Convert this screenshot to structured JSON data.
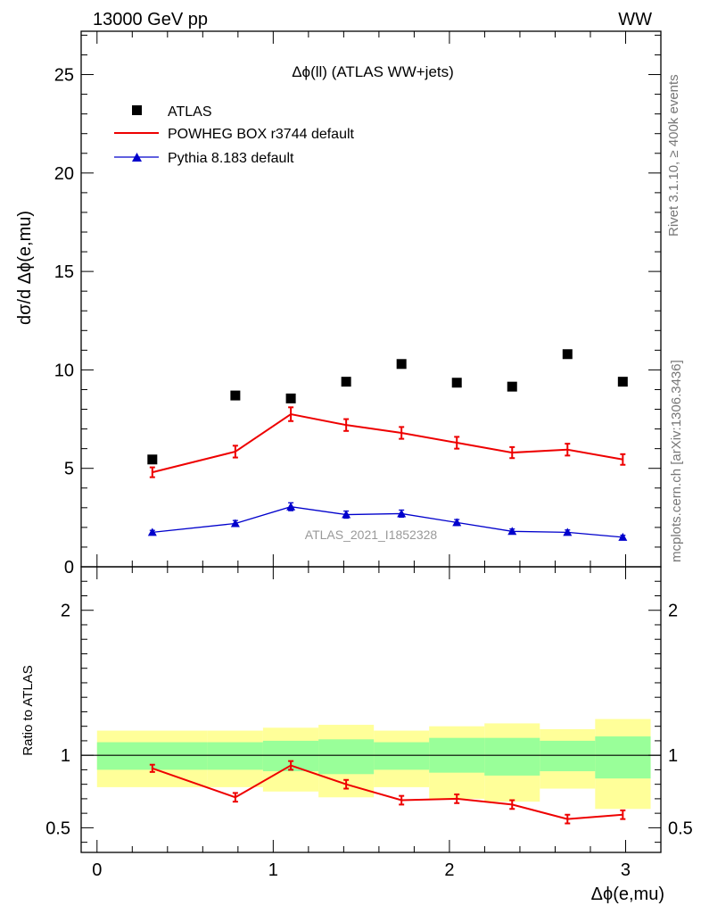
{
  "header": {
    "energy_label": "13000 GeV pp",
    "process_label": "WW",
    "rivet_label": "Rivet 3.1.10, ≥ 400k events",
    "source_label": "mcplots.cern.ch [arXiv:1306.3436]"
  },
  "chart_data": [
    {
      "type": "scatter",
      "title": "Δϕ(ll) (ATLAS WW+jets)",
      "analysis_label": "ATLAS_2021_I1852328",
      "ylabel": "dσ/d Δϕ(e,mu)",
      "ylim": [
        0,
        27.2
      ],
      "yticks": [
        0,
        5,
        10,
        15,
        20,
        25
      ],
      "xlim": [
        -0.09,
        3.2
      ],
      "x": [
        0.314,
        0.785,
        1.1,
        1.414,
        1.728,
        2.042,
        2.356,
        2.67,
        2.984
      ],
      "bin_edges": [
        0.0,
        0.628,
        0.942,
        1.257,
        1.571,
        1.885,
        2.199,
        2.513,
        2.827,
        3.142
      ],
      "legend": [
        "ATLAS",
        "POWHEG BOX r3744 default",
        "Pythia 8.183 default"
      ],
      "series": [
        {
          "name": "ATLAS",
          "marker": "square",
          "color": "#000000",
          "values": [
            5.45,
            8.7,
            8.55,
            9.4,
            10.3,
            9.35,
            9.15,
            10.8,
            9.4
          ]
        },
        {
          "name": "POWHEG BOX r3744 default",
          "marker": "line",
          "color": "#ee0000",
          "values": [
            4.8,
            5.85,
            7.75,
            7.2,
            6.8,
            6.3,
            5.8,
            5.95,
            5.45
          ],
          "errors": [
            0.25,
            0.3,
            0.35,
            0.3,
            0.3,
            0.3,
            0.28,
            0.3,
            0.27
          ]
        },
        {
          "name": "Pythia 8.183 default",
          "marker": "triangle",
          "color": "#0000cc",
          "values": [
            1.75,
            2.2,
            3.05,
            2.65,
            2.7,
            2.25,
            1.8,
            1.75,
            1.5
          ],
          "errors": [
            0.1,
            0.15,
            0.2,
            0.18,
            0.18,
            0.15,
            0.12,
            0.12,
            0.1
          ]
        }
      ]
    },
    {
      "type": "scatter",
      "ylabel": "Ratio to ATLAS",
      "xlabel": "Δϕ(e,mu)",
      "ylim": [
        0.33,
        2.3
      ],
      "yticks": [
        0.5,
        1,
        2
      ],
      "ytick_labels": [
        "0.5",
        "1",
        "2"
      ],
      "xticks": [
        0,
        1,
        2,
        3
      ],
      "xtick_labels": [
        "0",
        "1",
        "2",
        "3"
      ],
      "xlim": [
        -0.09,
        3.2
      ],
      "reference_line": 1,
      "band_inner": [
        {
          "lo": 0.9,
          "hi": 1.09
        },
        {
          "lo": 0.9,
          "hi": 1.09
        },
        {
          "lo": 0.89,
          "hi": 1.1
        },
        {
          "lo": 0.87,
          "hi": 1.11
        },
        {
          "lo": 0.9,
          "hi": 1.09
        },
        {
          "lo": 0.88,
          "hi": 1.12
        },
        {
          "lo": 0.86,
          "hi": 1.12
        },
        {
          "lo": 0.89,
          "hi": 1.1
        },
        {
          "lo": 0.84,
          "hi": 1.13
        }
      ],
      "band_outer": [
        {
          "lo": 0.78,
          "hi": 1.17
        },
        {
          "lo": 0.78,
          "hi": 1.17
        },
        {
          "lo": 0.75,
          "hi": 1.19
        },
        {
          "lo": 0.71,
          "hi": 1.21
        },
        {
          "lo": 0.78,
          "hi": 1.17
        },
        {
          "lo": 0.7,
          "hi": 1.2
        },
        {
          "lo": 0.68,
          "hi": 1.22
        },
        {
          "lo": 0.77,
          "hi": 1.18
        },
        {
          "lo": 0.63,
          "hi": 1.25
        }
      ],
      "band_colors": {
        "inner": "#99ff99",
        "outer": "#ffff99"
      },
      "series": [
        {
          "name": "POWHEG BOX r3744 default",
          "color": "#ee0000",
          "values": [
            0.91,
            0.71,
            0.93,
            0.8,
            0.69,
            0.7,
            0.66,
            0.56,
            0.59
          ],
          "errors": [
            0.025,
            0.03,
            0.03,
            0.03,
            0.03,
            0.03,
            0.03,
            0.03,
            0.03
          ]
        }
      ]
    }
  ]
}
